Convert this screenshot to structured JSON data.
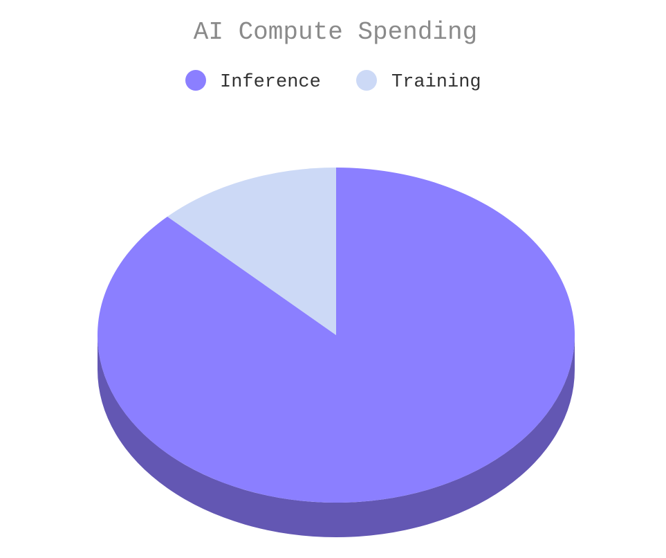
{
  "chart_data": {
    "type": "pie",
    "title": "AI Compute Spending",
    "three_d": true,
    "legend_position": "top",
    "series": [
      {
        "name": "Inference",
        "value": 87.5,
        "color": "#8b7fff",
        "side_color": "#6357b3"
      },
      {
        "name": "Training",
        "value": 12.5,
        "color": "#ccd9f6",
        "side_color": "#929db8"
      }
    ]
  }
}
